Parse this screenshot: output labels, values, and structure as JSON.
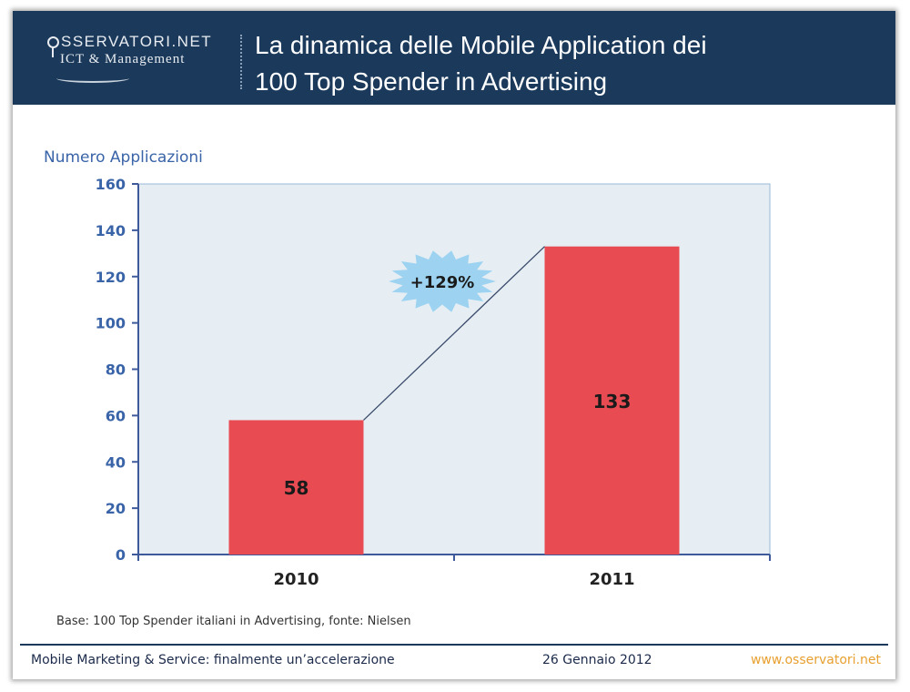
{
  "header": {
    "logo_text": "SSERVATORI.NET",
    "logo_sub": "ICT & Management",
    "title_line1": "La dinamica delle Mobile Application dei",
    "title_line2": "100 Top Spender in Advertising"
  },
  "chart_data": {
    "type": "bar",
    "title": "La dinamica delle Mobile Application dei 100 Top Spender in Advertising",
    "ylabel": "Numero Applicazioni",
    "xlabel": "",
    "categories": [
      "2010",
      "2011"
    ],
    "values": [
      58,
      133
    ],
    "ylim": [
      0,
      160
    ],
    "yticks": [
      0,
      20,
      40,
      60,
      80,
      100,
      120,
      140,
      160
    ],
    "data_labels": [
      "58",
      "133"
    ],
    "annotation": "+129%",
    "grid": false,
    "colors": {
      "bar": "#e84c52",
      "plot_bg": "#e6eef4",
      "axis": "#3e5a9a",
      "tick_label": "#3a64a8",
      "burst": "#9dd3f0",
      "connector": "#3a4a6a"
    }
  },
  "footnote": "Base: 100 Top Spender italiani in Advertising, fonte: Nielsen",
  "footer": {
    "left": "Mobile Marketing & Service: finalmente un’accelerazione",
    "date": "26 Gennaio 2012",
    "url": "www.osservatori.net"
  }
}
